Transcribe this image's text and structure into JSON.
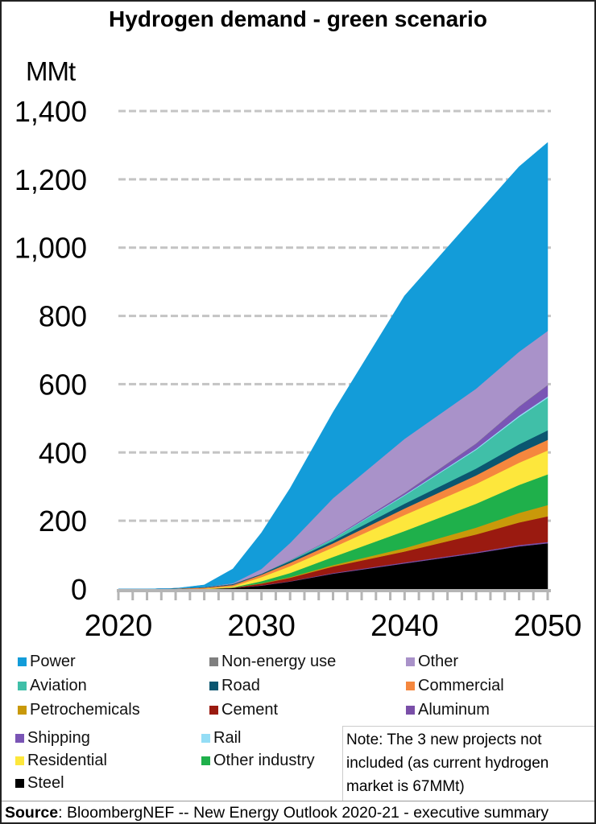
{
  "chart_data": {
    "type": "area",
    "stacked": true,
    "title": "Hydrogen demand - green scenario",
    "ylabel": "MMt",
    "xlabel": "",
    "xlim": [
      2020,
      2050
    ],
    "ylim": [
      0,
      1400
    ],
    "yticks": [
      "0",
      "200",
      "400",
      "600",
      "800",
      "1,000",
      "1,200",
      "1,400"
    ],
    "ytick_values": [
      0,
      200,
      400,
      600,
      800,
      1000,
      1200,
      1400
    ],
    "xticks": [
      "2020",
      "2030",
      "2040",
      "2050"
    ],
    "xtick_values": [
      2020,
      2030,
      2040,
      2050
    ],
    "grid": "horizontal dashed",
    "legend_position": "bottom",
    "x": [
      2020,
      2022,
      2024,
      2026,
      2028,
      2030,
      2032,
      2035,
      2040,
      2045,
      2048,
      2050
    ],
    "series": [
      {
        "name": "Steel",
        "color": "#000000",
        "values": [
          0,
          0,
          0,
          0,
          3,
          10,
          22,
          45,
          75,
          105,
          125,
          134
        ]
      },
      {
        "name": "Aluminum",
        "color": "#7a4fa8",
        "values": [
          0,
          0,
          0,
          0,
          0,
          1,
          1,
          2,
          3,
          3,
          4,
          4
        ]
      },
      {
        "name": "Cement",
        "color": "#9a1a10",
        "values": [
          0,
          0,
          0,
          0,
          1,
          5,
          10,
          19,
          32,
          52,
          66,
          75
        ]
      },
      {
        "name": "Petrochemicals",
        "color": "#c9990a",
        "values": [
          0,
          0,
          0,
          0,
          0,
          1,
          2,
          4,
          10,
          20,
          28,
          33
        ]
      },
      {
        "name": "Other industry",
        "color": "#1fb04b",
        "values": [
          0,
          0,
          0,
          0,
          1,
          6,
          12,
          24,
          50,
          70,
          82,
          90
        ]
      },
      {
        "name": "Residential",
        "color": "#fde73c",
        "values": [
          0,
          0,
          0,
          1,
          3,
          12,
          20,
          28,
          47,
          58,
          65,
          70
        ]
      },
      {
        "name": "Commercial",
        "color": "#f5873e",
        "values": [
          0,
          0,
          1,
          3,
          4,
          7,
          10,
          12,
          19,
          25,
          29,
          31
        ]
      },
      {
        "name": "Road",
        "color": "#0b5670",
        "values": [
          0,
          0,
          1,
          2,
          3,
          3,
          5,
          7,
          14,
          20,
          25,
          28
        ]
      },
      {
        "name": "Aviation",
        "color": "#40bfa8",
        "values": [
          0,
          0,
          0,
          0,
          0,
          0,
          2,
          6,
          24,
          55,
          80,
          95
        ]
      },
      {
        "name": "Rail",
        "color": "#94ddf5",
        "values": [
          0,
          0,
          0,
          0,
          0,
          0,
          0,
          1,
          2,
          3,
          4,
          4
        ]
      },
      {
        "name": "Shipping",
        "color": "#7a55b5",
        "values": [
          0,
          0,
          0,
          0,
          0,
          0,
          1,
          2,
          5,
          15,
          26,
          33
        ]
      },
      {
        "name": "Non-energy use",
        "color": "#7f7f7f",
        "values": [
          0,
          0,
          0,
          0,
          0,
          0,
          0,
          0,
          1,
          1,
          1,
          1
        ]
      },
      {
        "name": "Other",
        "color": "#a992c9",
        "values": [
          0,
          0,
          0,
          0,
          2,
          14,
          50,
          116,
          158,
          160,
          160,
          158
        ]
      },
      {
        "name": "Power",
        "color": "#139cd9",
        "values": [
          0,
          0,
          0,
          6,
          42,
          106,
          160,
          252,
          419,
          509,
          542,
          552
        ]
      }
    ]
  },
  "legend": {
    "items": [
      {
        "label": "Power",
        "color": "#139cd9"
      },
      {
        "label": "Non-energy use",
        "color": "#7f7f7f"
      },
      {
        "label": "Other",
        "color": "#a992c9"
      },
      {
        "label": "Aviation",
        "color": "#40bfa8"
      },
      {
        "label": "Road",
        "color": "#0b5670"
      },
      {
        "label": "Commercial",
        "color": "#f5873e"
      },
      {
        "label": "Petrochemicals",
        "color": "#c9990a"
      },
      {
        "label": "Cement",
        "color": "#9a1a10"
      },
      {
        "label": "Aluminum",
        "color": "#7a4fa8"
      },
      {
        "label": "Shipping",
        "color": "#7a55b5"
      },
      {
        "label": "Rail",
        "color": "#94ddf5"
      },
      {
        "label": "Residential",
        "color": "#fde73c"
      },
      {
        "label": "Other industry",
        "color": "#1fb04b"
      },
      {
        "label": "Steel",
        "color": "#000000"
      }
    ]
  },
  "note": {
    "lines": [
      "Note: The 3 new projects  not",
      "included (as current hydrogen",
      "market is 67MMt)"
    ]
  },
  "source": {
    "label": "Source",
    "text": ": BloombergNEF -- New Energy Outlook 2020-21 - executive summary"
  }
}
